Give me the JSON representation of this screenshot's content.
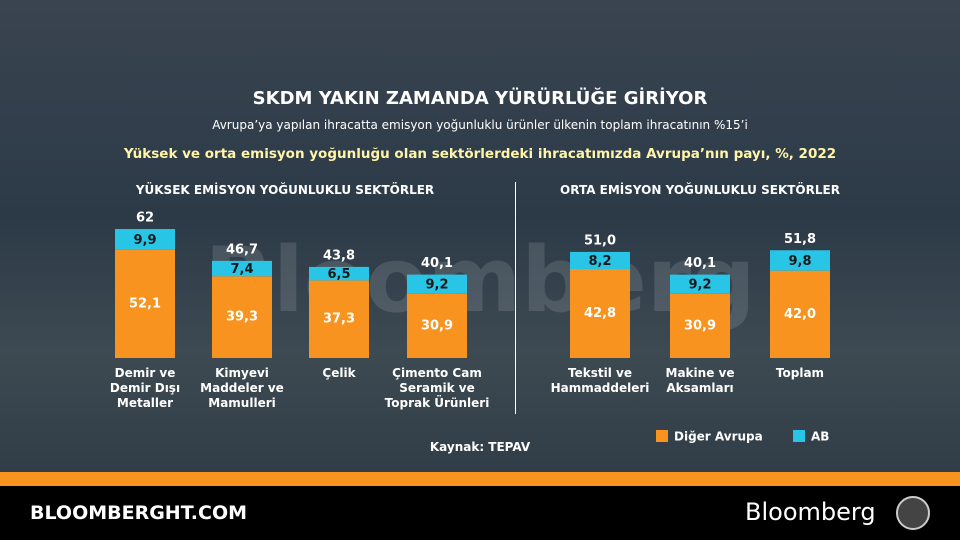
{
  "header": {
    "title": "SKDM YAKIN ZAMANDA YÜRÜRLÜĞE GİRİYOR",
    "subtitle": "Avrupa’ya yapılan ihracatta emisyon yoğunluklu ürünler ülkenin toplam ihracatının %15’i"
  },
  "chart_title": "Yüksek ve orta emisyon yoğunluğu olan sektörlerdeki ihracatımızda Avrupa’nın payı, %, 2022",
  "chart_data": [
    {
      "type": "bar",
      "stacked": true,
      "title": "YÜKSEK EMİSYON YOĞUNLUKLU SEKTÖRLER",
      "categories": [
        "Demir ve\nDemir Dışı\nMetaller",
        "Kimyevi\nMaddeler ve\nMamulleri",
        "Çelik",
        "Çimento Cam\nSeramik ve\nToprak Ürünleri"
      ],
      "series": [
        {
          "name": "Diğer Avrupa",
          "color": "#f7931e",
          "values": [
            52.1,
            39.3,
            37.3,
            30.9
          ],
          "value_labels": [
            "52,1",
            "39,3",
            "37,3",
            "30,9"
          ]
        },
        {
          "name": "AB",
          "color": "#29c5e6",
          "values": [
            9.9,
            7.4,
            6.5,
            9.2
          ],
          "value_labels": [
            "9,9",
            "7,4",
            "6,5",
            "9,2"
          ]
        }
      ],
      "totals": [
        62,
        46.7,
        43.8,
        40.1
      ],
      "total_labels": [
        "62",
        "46,7",
        "43,8",
        "40,1"
      ]
    },
    {
      "type": "bar",
      "stacked": true,
      "title": "ORTA EMİSYON YOĞUNLUKLU SEKTÖRLER",
      "categories": [
        "Tekstil ve\nHammaddeleri",
        "Makine ve\nAksamları",
        "Toplam"
      ],
      "series": [
        {
          "color": "#f7931e",
          "values": [
            42.8,
            30.9,
            42.0
          ],
          "value_labels": [
            "42,8",
            "30,9",
            "42,0"
          ]
        },
        {
          "color": "#29c5e6",
          "values": [
            8.2,
            9.2,
            9.8
          ],
          "value_labels": [
            "8,2",
            "9,2",
            "9,8"
          ]
        }
      ],
      "totals": [
        51.0,
        40.1,
        51.8
      ],
      "total_labels": [
        "51,0",
        "40,1",
        "51,8"
      ]
    }
  ],
  "source": "Kaynak: TEPAV",
  "watermark": "Bloomberg",
  "footer": {
    "site": "BLOOMBERGHT.COM",
    "brand": "Bloomberg"
  }
}
